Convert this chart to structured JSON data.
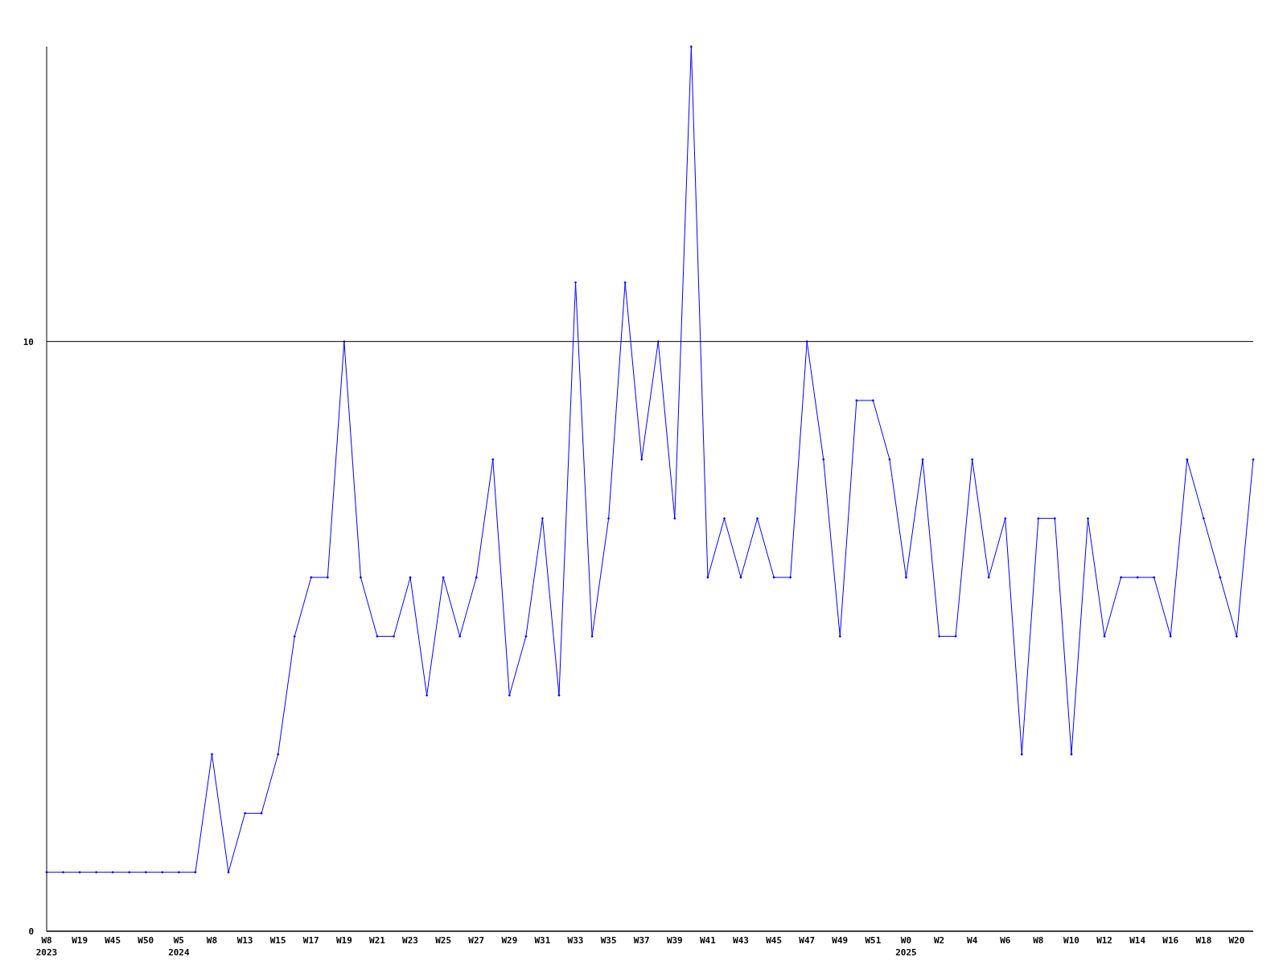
{
  "chart_data": {
    "type": "line",
    "categories": [
      "W8\n2023",
      null,
      "W19",
      null,
      "W45",
      null,
      "W50",
      null,
      "W5\n2024",
      null,
      "W8",
      null,
      "W13",
      null,
      "W15",
      null,
      "W17",
      null,
      "W19",
      null,
      "W21",
      null,
      "W23",
      null,
      "W25",
      null,
      "W27",
      null,
      "W29",
      null,
      "W31",
      null,
      "W33",
      null,
      "W35",
      null,
      "W37",
      null,
      "W39",
      null,
      "W41",
      null,
      "W43",
      null,
      "W45",
      null,
      "W47",
      null,
      "W49",
      null,
      "W51",
      null,
      "W0\n2025",
      null,
      "W2",
      null,
      "W4",
      null,
      "W6",
      null,
      "W8",
      null,
      "W10",
      null,
      "W12",
      null,
      "W14",
      null,
      "W16",
      null,
      "W18",
      null,
      "W20",
      null
    ],
    "series": [
      {
        "color": "#0000ff",
        "values": [
          1,
          1,
          1,
          1,
          1,
          1,
          1,
          1,
          1,
          1,
          3,
          1,
          2,
          2,
          3,
          5,
          6,
          6,
          10,
          6,
          5,
          5,
          6,
          4,
          6,
          5,
          6,
          8,
          4,
          5,
          7,
          4,
          11,
          5,
          7,
          11,
          8,
          10,
          7,
          15,
          6,
          7,
          6,
          7,
          6,
          6,
          10,
          8,
          5,
          9,
          9,
          8,
          6,
          8,
          5,
          5,
          8,
          6,
          7,
          3,
          7,
          7,
          3,
          7,
          5,
          6,
          6,
          6,
          5,
          8,
          7,
          6,
          5,
          8
        ]
      }
    ],
    "ylim": [
      0,
      15
    ],
    "yticks": [
      0,
      10
    ],
    "grid": "y",
    "marker": "diamond",
    "line_style": "solid"
  }
}
